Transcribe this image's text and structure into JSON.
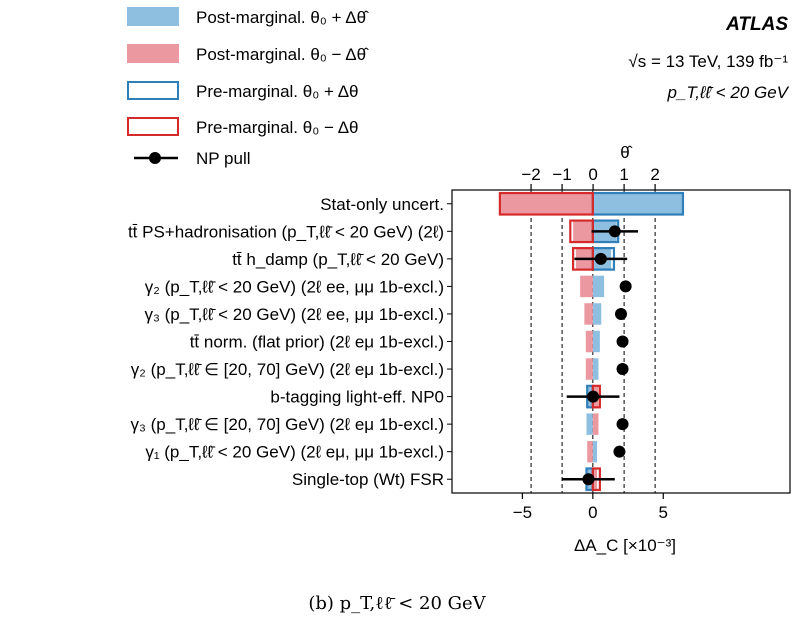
{
  "chart_data": {
    "type": "bar",
    "orientation": "horizontal",
    "caption": "(b) p_T,ℓℓ̄ < 20 GeV",
    "experiment": "ATLAS",
    "energy_lumi": "√s = 13 TeV, 139 fb⁻¹",
    "region": "p_T,ℓℓ̄ < 20 GeV",
    "xlabel": "ΔA_C [×10⁻³]",
    "xlim": [
      -10,
      14
    ],
    "xticks": [
      -5,
      0,
      5
    ],
    "top_axis_label": "θ̂",
    "top_xlim": [
      -4.55,
      6.35
    ],
    "top_xticks": [
      -2,
      -1,
      0,
      1,
      2
    ],
    "grid": "dashed vertical at pull ±1, ±2",
    "legend": {
      "position": "top-left",
      "entries": [
        {
          "label": "Post-marginal. θ₀ + Δθ̂",
          "style": "post-up"
        },
        {
          "label": "Post-marginal. θ₀ − Δθ̂",
          "style": "post-down"
        },
        {
          "label": "Pre-marginal. θ₀ + Δθ",
          "style": "pre-up"
        },
        {
          "label": "Pre-marginal. θ₀ − Δθ",
          "style": "pre-down"
        },
        {
          "label": "NP pull",
          "style": "pull"
        }
      ]
    },
    "colors": {
      "post_up": "#8fbfe0",
      "post_down": "#eb98a0",
      "pre_up": "#2f7fba",
      "pre_down": "#d62a2a",
      "pull": "#000000"
    },
    "categories": [
      "Stat-only uncert.",
      "tt̄ PS+hadronisation (p_T,ℓℓ̄ < 20 GeV) (2ℓ)",
      "tt̄ h_damp (p_T,ℓℓ̄ < 20 GeV)",
      "γ₂ (p_T,ℓℓ̄ < 20 GeV) (2ℓ ee, μμ 1b-excl.)",
      "γ₃ (p_T,ℓℓ̄ < 20 GeV) (2ℓ ee, μμ 1b-excl.)",
      "tt̄ norm. (flat prior) (2ℓ eμ 1b-excl.)",
      "γ₂ (p_T,ℓℓ̄ ∈ [20, 70] GeV) (2ℓ eμ 1b-excl.)",
      "b-tagging light-eff. NP0",
      "γ₃ (p_T,ℓℓ̄ ∈ [20, 70] GeV) (2ℓ eμ 1b-excl.)",
      "γ₁ (p_T,ℓℓ̄ < 20 GeV) (2ℓ eμ, μμ 1b-excl.)",
      "Single-top (Wt) FSR"
    ],
    "post_up": [
      6.4,
      1.7,
      1.3,
      0.8,
      0.6,
      0.5,
      0.4,
      -0.4,
      -0.45,
      0.3,
      -0.5
    ],
    "post_down": [
      -6.6,
      -1.4,
      -1.2,
      -0.9,
      -0.6,
      -0.5,
      -0.5,
      0.4,
      0.4,
      -0.4,
      0.3
    ],
    "pre_up": [
      6.4,
      1.8,
      1.5,
      null,
      null,
      null,
      null,
      -0.4,
      null,
      null,
      -0.45
    ],
    "pre_down": [
      -6.6,
      -1.6,
      -1.4,
      null,
      null,
      null,
      null,
      0.5,
      null,
      null,
      0.5
    ],
    "pull": [
      null,
      0.7,
      0.25,
      1.05,
      0.9,
      0.95,
      0.95,
      0.0,
      0.95,
      0.85,
      -0.15
    ],
    "pull_err": [
      null,
      0.75,
      0.85,
      null,
      null,
      null,
      null,
      0.85,
      null,
      0.15,
      0.85
    ]
  }
}
